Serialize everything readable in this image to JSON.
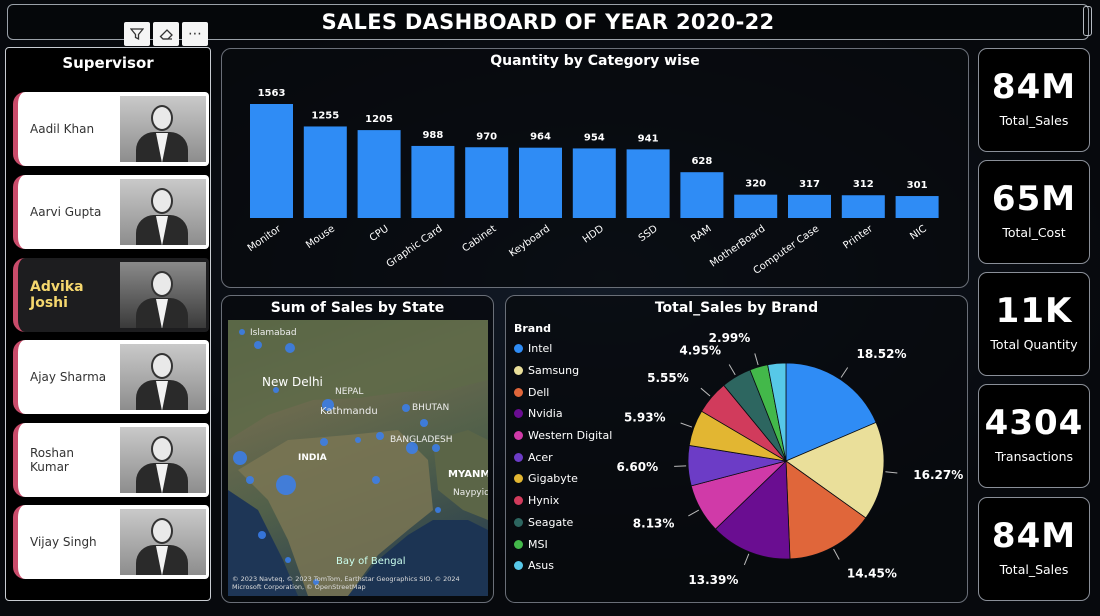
{
  "header": {
    "title": "SALES DASHBOARD OF YEAR 2020-22"
  },
  "toolbar": {
    "filter_icon": "funnel-icon",
    "eraser_icon": "eraser-icon",
    "more_icon": "more-options-icon"
  },
  "supervisor": {
    "title": "Supervisor",
    "items": [
      {
        "name": "Aadil Khan",
        "selected": false
      },
      {
        "name": "Aarvi Gupta",
        "selected": false
      },
      {
        "name": "Advika Joshi",
        "selected": true
      },
      {
        "name": "Ajay Sharma",
        "selected": false
      },
      {
        "name": "Roshan Kumar",
        "selected": false
      },
      {
        "name": "Vijay Singh",
        "selected": false
      }
    ]
  },
  "kpis": [
    {
      "value": "84M",
      "label": "Total_Sales"
    },
    {
      "value": "65M",
      "label": "Total_Cost"
    },
    {
      "value": "11K",
      "label": "Total Quantity"
    },
    {
      "value": "4304",
      "label": "Transactions"
    },
    {
      "value": "84M",
      "label": "Total_Sales"
    }
  ],
  "bar_panel": {
    "title": "Quantity by Category wise"
  },
  "map_panel": {
    "title": "Sum of Sales by State",
    "labels": [
      "Islamabad",
      "New Delhi",
      "NEPAL",
      "Kathmandu",
      "BHUTAN",
      "BANGLADESH",
      "INDIA",
      "MYANM",
      "Naypyidaw",
      "Bay of Bengal"
    ],
    "attribution": "© 2023 Navteq, © 2023 TomTom, Earthstar Geographics SIO, © 2024 Microsoft Corporation, © OpenStreetMap",
    "brand": "Microsoft"
  },
  "pie_panel": {
    "title": "Total_Sales by Brand",
    "legend_title": "Brand"
  },
  "chart_data": [
    {
      "type": "bar",
      "title": "Quantity by Category wise",
      "categories": [
        "Monitor",
        "Mouse",
        "CPU",
        "Graphic Card",
        "Cabinet",
        "Keyboard",
        "HDD",
        "SSD",
        "RAM",
        "MotherBoard",
        "Computer Case",
        "Printer",
        "NIC"
      ],
      "values": [
        1563,
        1255,
        1205,
        988,
        970,
        964,
        954,
        941,
        628,
        320,
        317,
        312,
        301
      ],
      "color": "#2f8cf5",
      "ylim": [
        0,
        1563
      ]
    },
    {
      "type": "pie",
      "title": "Total_Sales by Brand",
      "categories": [
        "Intel",
        "Samsung",
        "Dell",
        "Nvidia",
        "Western Digital",
        "Acer",
        "Gigabyte",
        "Hynix",
        "Seagate",
        "MSI",
        "Asus"
      ],
      "values": [
        18.52,
        16.27,
        14.45,
        13.39,
        8.13,
        6.6,
        5.93,
        5.55,
        4.95,
        2.99,
        2.99
      ],
      "labels": [
        "18.52%",
        "16.27%",
        "14.45%",
        "13.39%",
        "8.13%",
        "6.60%",
        "5.93%",
        "5.55%",
        "4.95%",
        "2.99%",
        ""
      ],
      "colors": [
        "#2f8cf5",
        "#eadf9a",
        "#e0663a",
        "#6a0d91",
        "#d03aa8",
        "#6c3cc6",
        "#e2b632",
        "#d13b5c",
        "#2d6660",
        "#43b84a",
        "#57c8e8"
      ]
    }
  ]
}
